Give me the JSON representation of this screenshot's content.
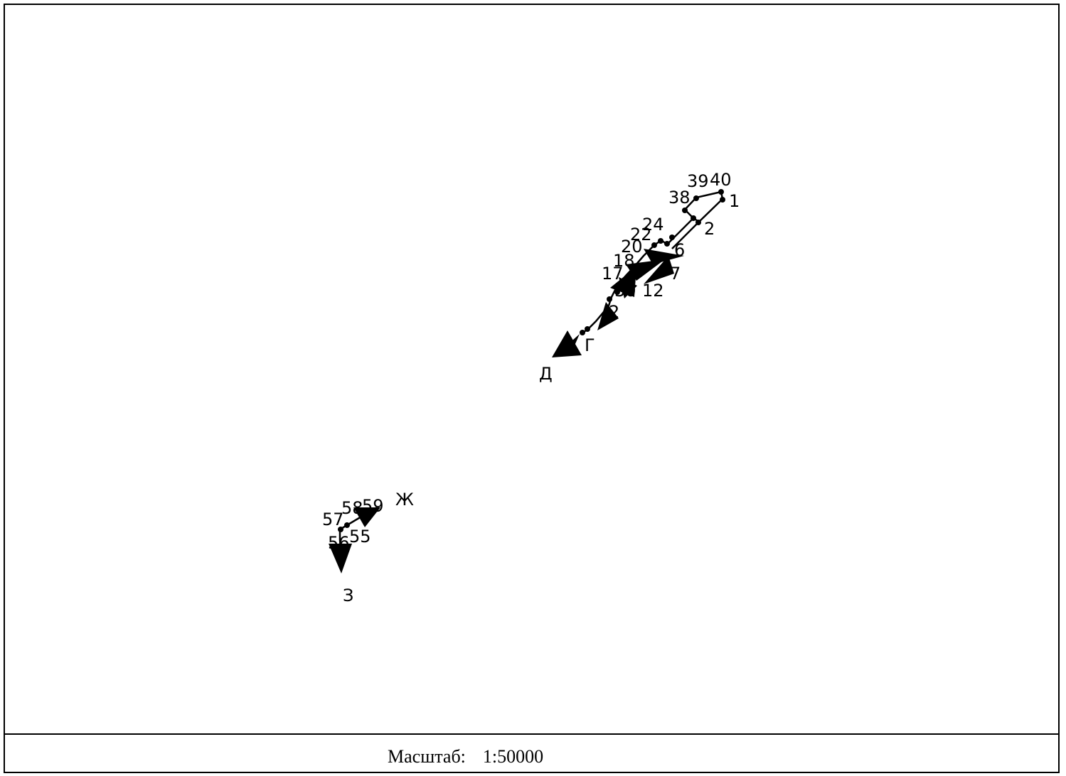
{
  "labels": {
    "p1": "1",
    "p2": "2",
    "p6": "6",
    "p7": "7",
    "p12": "12",
    "p17": "17",
    "p18": "18",
    "p20": "20",
    "p22": "22",
    "p24": "24",
    "p38": "38",
    "p39": "39",
    "p40": "40",
    "p55": "55",
    "p56": "56",
    "p57": "57",
    "p58": "58",
    "p59": "59",
    "partial_near_12": "30",
    "partial_lower": "2",
    "G": "Г",
    "D": "Д",
    "Zh": "Ж",
    "Z": "З"
  },
  "scale": {
    "label": "Масштаб:",
    "value": "1:50000"
  }
}
